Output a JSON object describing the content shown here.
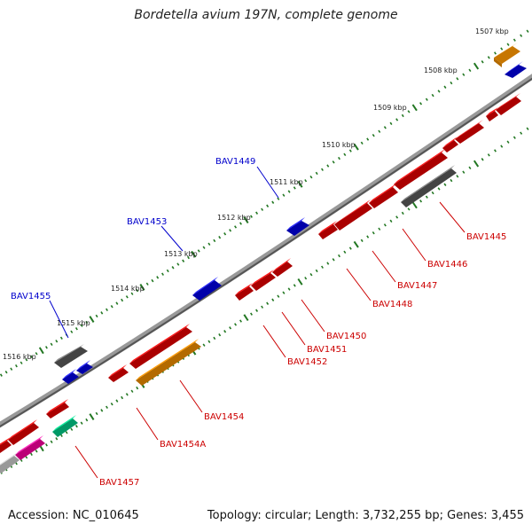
{
  "title": "Bordetella avium 197N, complete genome",
  "footer": {
    "accession": "Accession: NC_010645",
    "summary": "Topology: circular; Length: 3,732,255 bp; Genes: 3,455"
  },
  "colors": {
    "backbone": "#808080",
    "red": "#ee0000",
    "blue": "#0000ee",
    "gray": "#606060",
    "orange": "#ff9900",
    "green": "#00cc88",
    "magenta": "#ff00aa",
    "lightgray": "#cccccc",
    "tick": "#227722",
    "label_red": "#cc0000",
    "label_blue": "#0000cc"
  },
  "ticks": {
    "labels": [
      "1507 kbp",
      "1508 kbp",
      "1509 kbp",
      "1510 kbp",
      "1511 kbp",
      "1512 kbp",
      "1513 kbp",
      "1514 kbp",
      "1515 kbp",
      "1516 kbp"
    ]
  },
  "gene_labels_red": [
    "BAV1445",
    "BAV1446",
    "BAV1447",
    "BAV1448",
    "BAV1450",
    "BAV1451",
    "BAV1452",
    "BAV1454",
    "BAV1454A",
    "BAV1457"
  ],
  "gene_labels_blue": [
    "BAV1449",
    "BAV1453",
    "BAV1455"
  ]
}
